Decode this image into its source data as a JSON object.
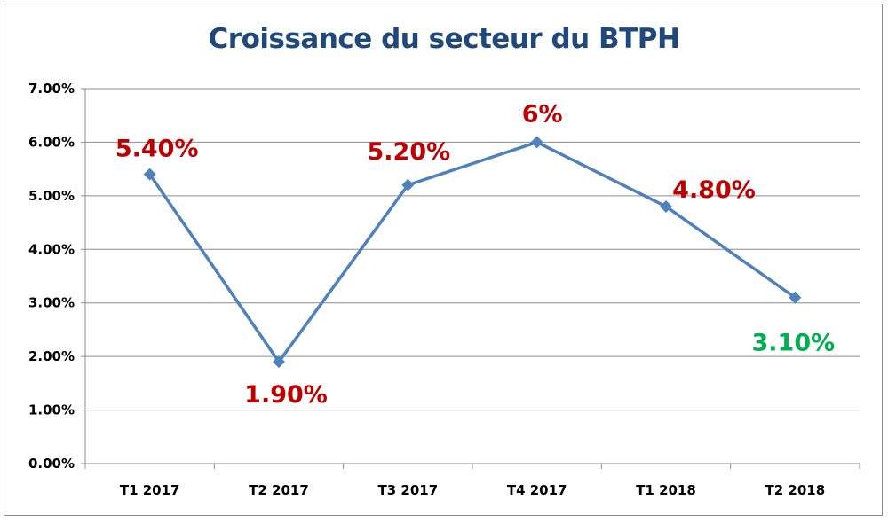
{
  "chart_data": {
    "type": "line",
    "title": "Croissance du secteur du BTPH",
    "xlabel": "",
    "ylabel": "",
    "categories": [
      "T1 2017",
      "T2 2017",
      "T3 2017",
      "T4 2017",
      "T1 2018",
      "T2 2018"
    ],
    "series": [
      {
        "values": [
          5.4,
          1.9,
          5.2,
          6.0,
          4.8,
          3.1
        ],
        "color": "#4f81bd"
      }
    ],
    "data_labels": [
      "5.40%",
      "1.90%",
      "5.20%",
      "6%",
      "4.80%",
      "3.10%"
    ],
    "data_label_colors": [
      "#c00000",
      "#c00000",
      "#c00000",
      "#c00000",
      "#c00000",
      "#00b050"
    ],
    "ylim": [
      0,
      7
    ],
    "yticks": [
      0,
      1,
      2,
      3,
      4,
      5,
      6,
      7
    ],
    "ytick_labels": [
      "0.00%",
      "1.00%",
      "2.00%",
      "3.00%",
      "4.00%",
      "5.00%",
      "6.00%",
      "7.00%"
    ],
    "grid": true,
    "legend": "none",
    "marker": "diamond"
  }
}
